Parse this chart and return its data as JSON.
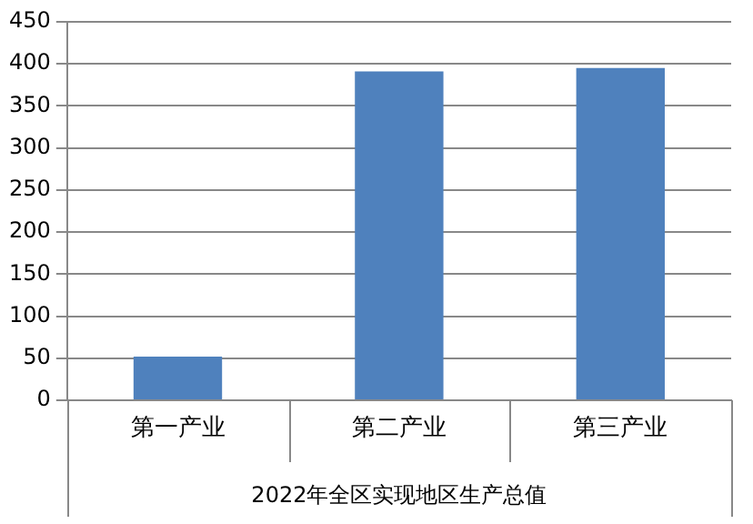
{
  "chart_data": {
    "type": "bar",
    "categories": [
      "第一产业",
      "第二产业",
      "第三产业"
    ],
    "values": [
      52,
      391,
      395
    ],
    "color": "#4f81bd",
    "xlabel": "2022年全区实现地区生产总值",
    "ylim": [
      0,
      450
    ],
    "yticks": [
      0,
      50,
      100,
      150,
      200,
      250,
      300,
      350,
      400,
      450
    ],
    "grid": "y"
  }
}
